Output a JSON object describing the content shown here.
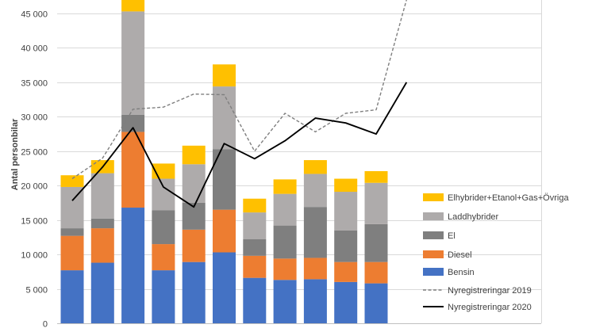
{
  "chart_data": {
    "type": "bar",
    "stacked": true,
    "ylabel": "Antal personbilar",
    "xlabel": "",
    "ylim": [
      0,
      45000
    ],
    "ytick_values": [
      0,
      5000,
      10000,
      15000,
      20000,
      25000,
      30000,
      35000,
      40000,
      45000
    ],
    "ytick_labels": [
      "0",
      "5 000",
      "10 000",
      "15 000",
      "20 000",
      "25 000",
      "30 000",
      "35 000",
      "40 000",
      "45 000"
    ],
    "grid": true,
    "legend_position": "right",
    "bar_count": 11,
    "line_points": 12,
    "series": [
      {
        "name": "Bensin",
        "color": "#4472C4",
        "values": [
          7700,
          8800,
          16800,
          7700,
          8900,
          10300,
          6600,
          6300,
          6400,
          6000,
          5800
        ]
      },
      {
        "name": "Diesel",
        "color": "#ED7D31",
        "values": [
          5000,
          5000,
          11000,
          3800,
          4700,
          6200,
          3200,
          3100,
          3100,
          2900,
          3100
        ]
      },
      {
        "name": "El",
        "color": "#7F7F7F",
        "values": [
          1100,
          1400,
          2500,
          4900,
          3900,
          8800,
          2400,
          4800,
          7400,
          4600,
          5500
        ]
      },
      {
        "name": "Laddhybrider",
        "color": "#AEABAB",
        "values": [
          6000,
          6600,
          15000,
          4600,
          5600,
          9100,
          3900,
          4600,
          4800,
          5600,
          6000
        ]
      },
      {
        "name": "Elhybrider+Etanol+Gas+Övriga",
        "color": "#FFC000",
        "values": [
          1700,
          1900,
          2100,
          2200,
          2700,
          3200,
          2000,
          2100,
          2000,
          1900,
          1700
        ]
      }
    ],
    "lines": [
      {
        "name": "Nyregistreringar 2019",
        "style": "dashed",
        "color": "#7F7F7F",
        "values": [
          21000,
          24000,
          31100,
          31400,
          33300,
          33200,
          25000,
          30500,
          27800,
          30500,
          31000,
          47000
        ]
      },
      {
        "name": "Nyregistreringar 2020",
        "style": "solid",
        "color": "#000000",
        "values": [
          17800,
          22700,
          28400,
          19800,
          16900,
          26100,
          23900,
          26500,
          29800,
          29100,
          27500,
          35000
        ]
      }
    ]
  },
  "legend": [
    {
      "label": "Elhybrider+Etanol+Gas+Övriga",
      "color": "#FFC000",
      "kind": "box"
    },
    {
      "label": "Laddhybrider",
      "color": "#AEABAB",
      "kind": "box"
    },
    {
      "label": "El",
      "color": "#7F7F7F",
      "kind": "box"
    },
    {
      "label": "Diesel",
      "color": "#ED7D31",
      "kind": "box"
    },
    {
      "label": "Bensin",
      "color": "#4472C4",
      "kind": "box"
    },
    {
      "label": "Nyregistreringar 2019",
      "color": "#7F7F7F",
      "kind": "dash"
    },
    {
      "label": "Nyregistreringar 2020",
      "color": "#000000",
      "kind": "line"
    }
  ]
}
